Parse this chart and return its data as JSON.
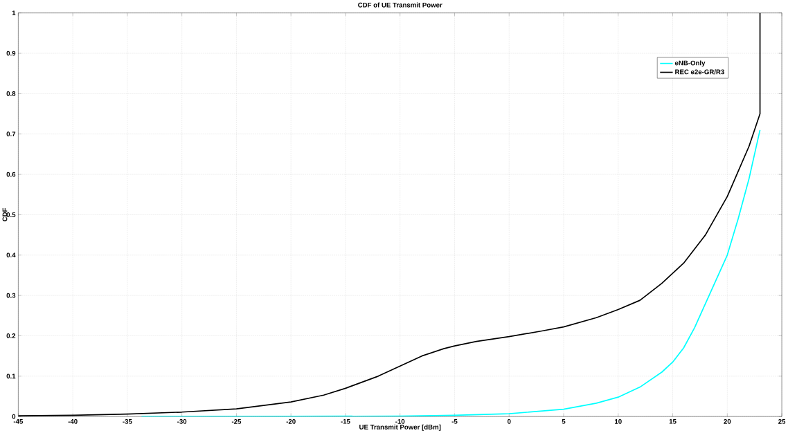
{
  "chart_data": {
    "type": "line",
    "title": "CDF of UE Transmit Power",
    "xlabel": "UE Transmit Power [dBm]",
    "ylabel": "CDF",
    "xlim": [
      -45,
      25
    ],
    "xticks": [
      -45,
      -40,
      -35,
      -30,
      -25,
      -20,
      -15,
      -10,
      -5,
      0,
      5,
      10,
      15,
      20,
      25
    ],
    "ylim": [
      0,
      1
    ],
    "yticks": [
      0,
      0.1,
      0.2,
      0.3,
      0.4,
      0.5,
      0.6,
      0.7,
      0.8,
      0.9,
      1
    ],
    "grid": true,
    "legend": "top right",
    "line_style": "solid",
    "marker": "none",
    "series": [
      {
        "name": "eNB-Only",
        "color": "#00ffff",
        "x": [
          -33.7,
          -20,
          -10,
          -5,
          0,
          5,
          8,
          10,
          12,
          14,
          15,
          16,
          17,
          18,
          19,
          20,
          21,
          22,
          23
        ],
        "values": [
          0,
          0.0005,
          0.001,
          0.003,
          0.007,
          0.018,
          0.033,
          0.048,
          0.073,
          0.11,
          0.135,
          0.17,
          0.22,
          0.28,
          0.34,
          0.4,
          0.49,
          0.59,
          0.71
        ]
      },
      {
        "name": "REC e2e-GR/R3",
        "color": "#000000",
        "x": [
          -45,
          -40,
          -35,
          -30,
          -25,
          -20,
          -17,
          -15,
          -12,
          -10,
          -8,
          -6,
          -5,
          -3,
          0,
          3,
          5,
          8,
          10,
          12,
          14,
          15,
          16,
          18,
          20,
          22,
          23,
          23
        ],
        "values": [
          0.002,
          0.003,
          0.006,
          0.011,
          0.019,
          0.036,
          0.053,
          0.07,
          0.1,
          0.125,
          0.15,
          0.168,
          0.175,
          0.186,
          0.198,
          0.212,
          0.222,
          0.245,
          0.265,
          0.288,
          0.33,
          0.355,
          0.38,
          0.45,
          0.545,
          0.67,
          0.75,
          1
        ]
      }
    ]
  }
}
